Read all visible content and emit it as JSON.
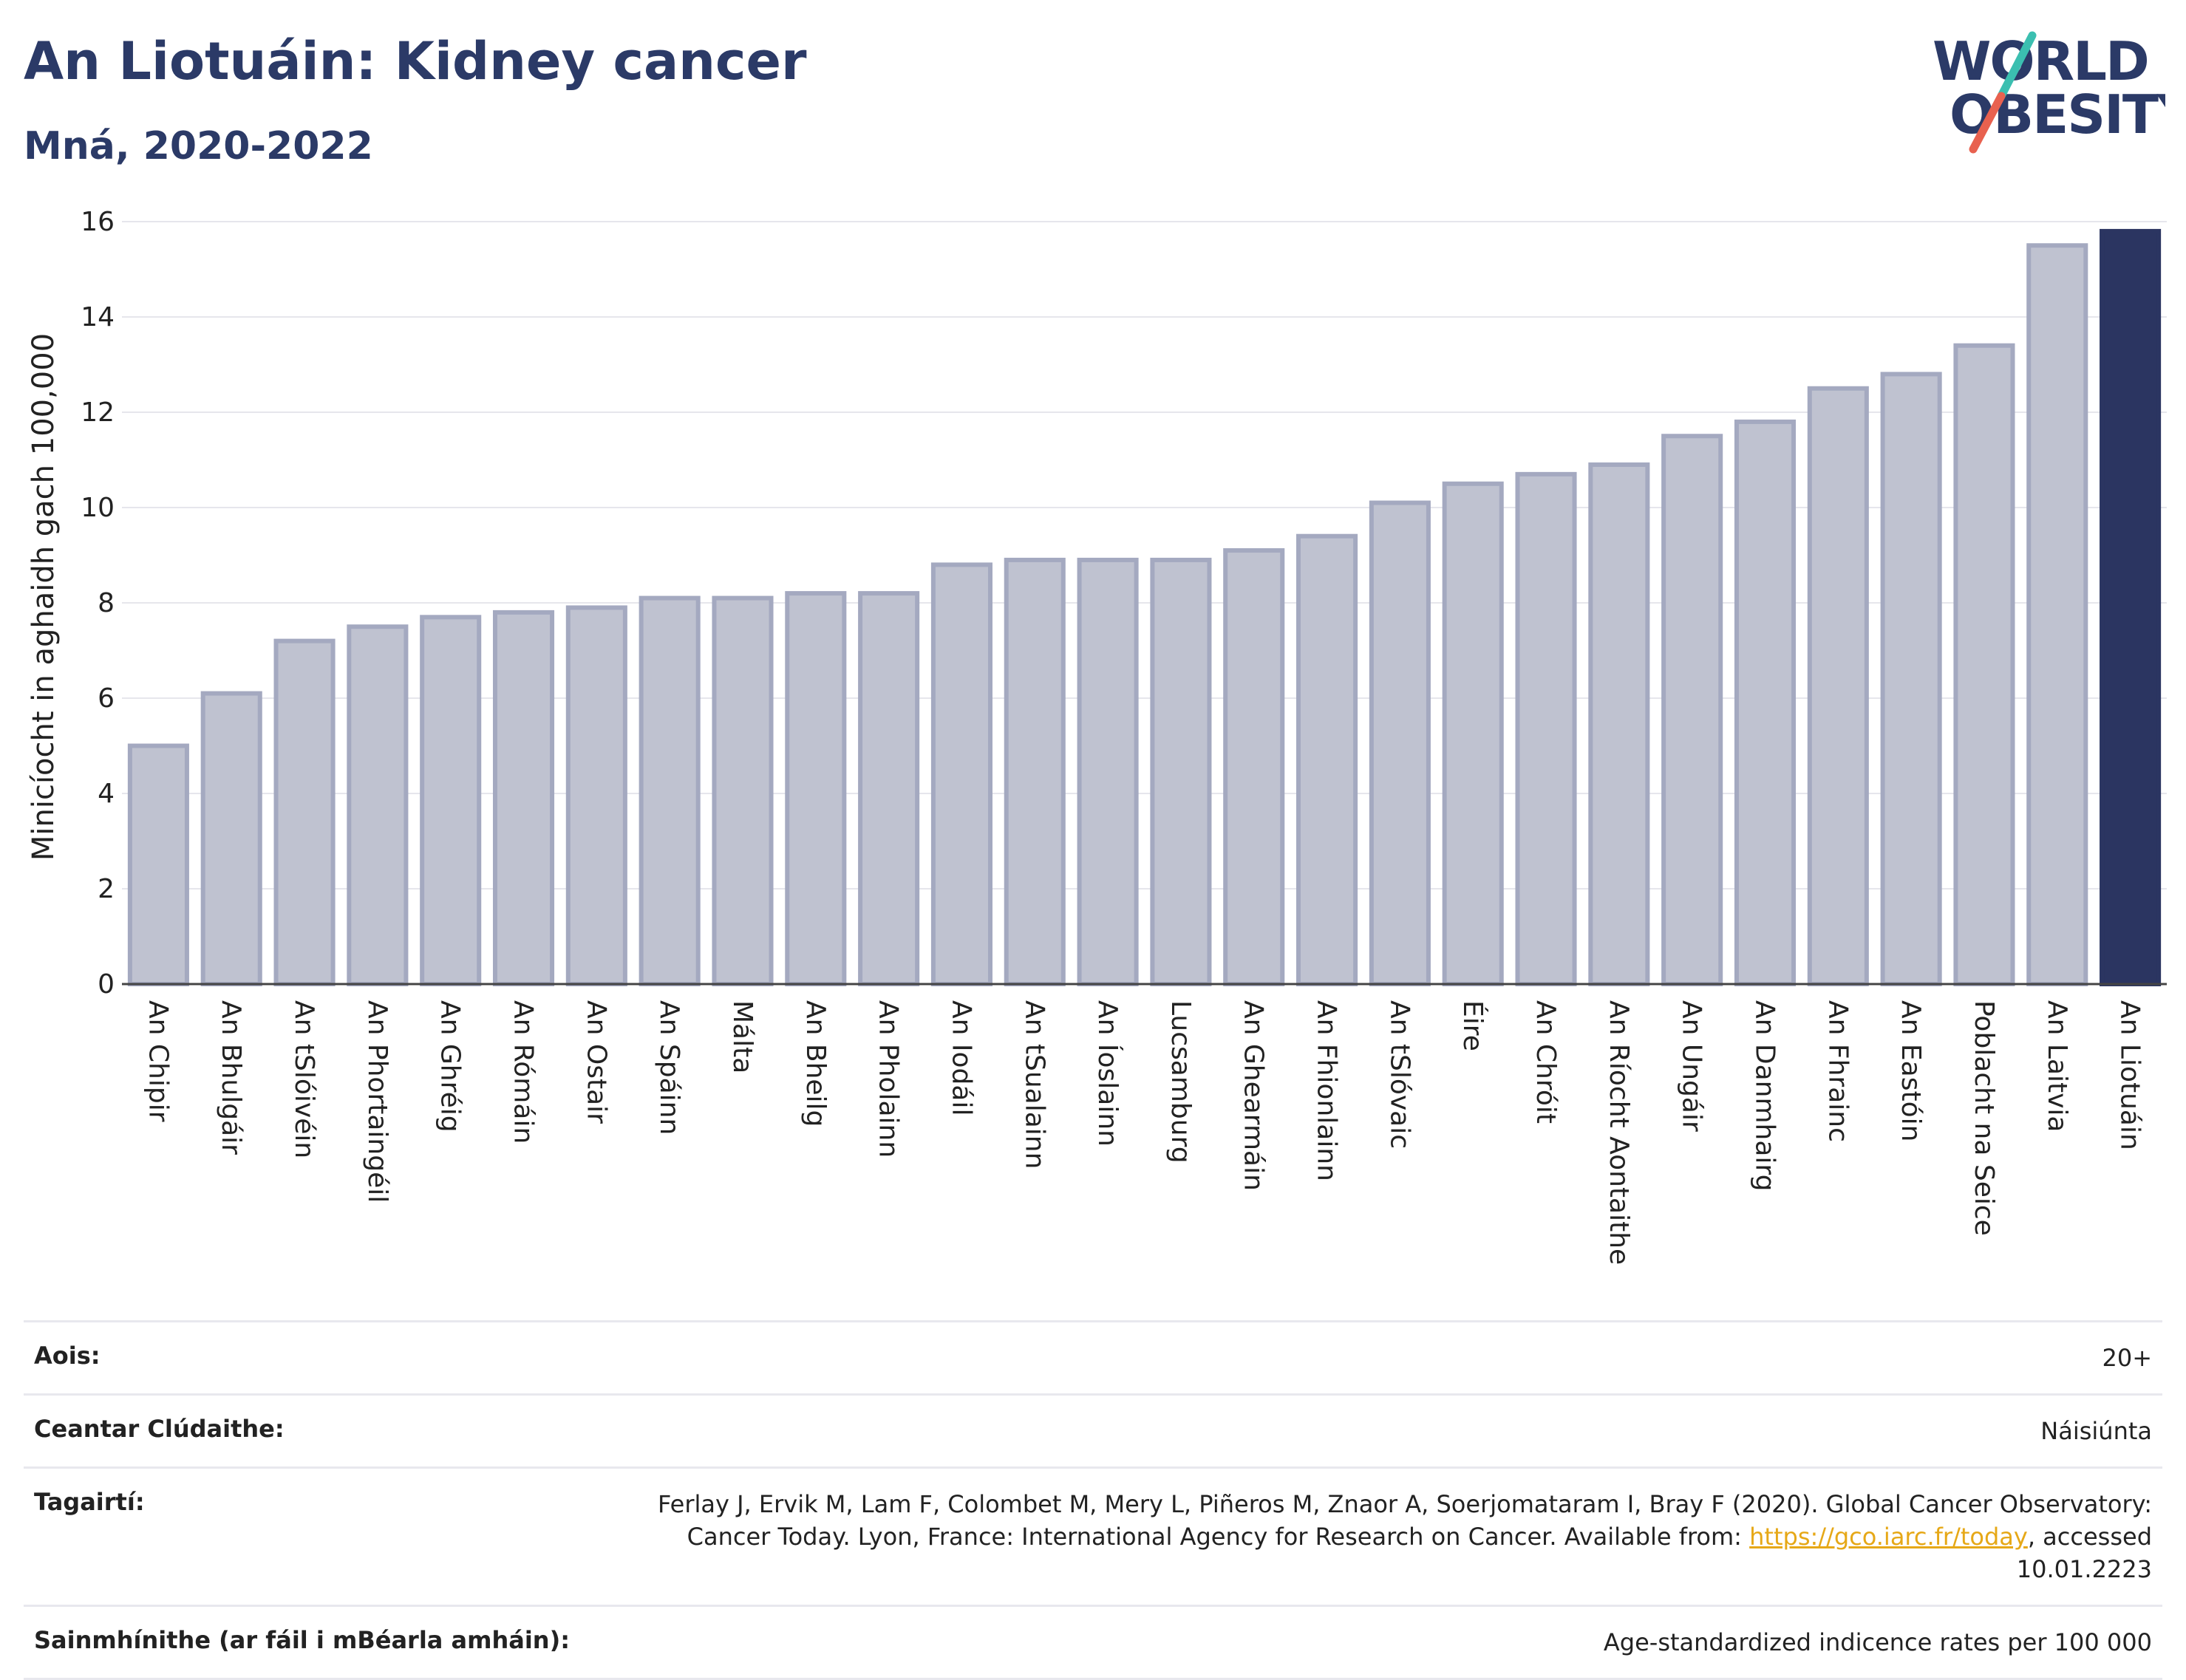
{
  "header": {
    "title": "An Liotuáin: Kidney cancer",
    "subtitle": "Mná, 2020-2022"
  },
  "logo": {
    "line1": "WORLD",
    "line2": "OBESITY",
    "colors": {
      "text": "#2b3a67",
      "slash_top": "#3bbfb0",
      "slash_bottom": "#e8614f"
    }
  },
  "chart_data": {
    "type": "bar",
    "ylabel": "Minicíocht in aghaidh gach 100,000",
    "ylim": [
      0,
      16
    ],
    "yticks": [
      0,
      2,
      4,
      6,
      8,
      10,
      12,
      14,
      16
    ],
    "grid": true,
    "categories": [
      "An Chipir",
      "An Bhulgáir",
      "An tSlóivéin",
      "An Phortaingéil",
      "An Ghréig",
      "An Rómáin",
      "An Ostair",
      "An Spáinn",
      "Málta",
      "An Bheilg",
      "An Pholainn",
      "An Iodáil",
      "An tSualainn",
      "An Íoslainn",
      "Lucsamburg",
      "An Ghearmáin",
      "An Fhionlainn",
      "An tSlóvaic",
      "Éire",
      "An Chróit",
      "An Ríocht Aontaithe",
      "An Ungáir",
      "An Danmhairg",
      "An Fhrainc",
      "An Eastóin",
      "Poblacht na Seice",
      "An Laitvia",
      "An Liotuáin"
    ],
    "values": [
      5.0,
      6.1,
      7.2,
      7.5,
      7.7,
      7.8,
      7.9,
      8.1,
      8.1,
      8.2,
      8.2,
      8.8,
      8.9,
      8.9,
      8.9,
      9.1,
      9.4,
      10.1,
      10.5,
      10.7,
      10.9,
      11.5,
      11.8,
      12.5,
      12.8,
      13.4,
      15.5,
      15.8
    ],
    "highlight": "An Liotuáin",
    "colors": {
      "bar": "#bfc2d0",
      "bar_edge": "#a4a9c0",
      "highlight": "#2b3561"
    }
  },
  "info": [
    {
      "label": "Aois:",
      "value": "20+"
    },
    {
      "label": "Ceantar Clúdaithe:",
      "value": "Náisiúnta"
    },
    {
      "label": "Tagairtí:",
      "value_pre": "Ferlay J, Ervik M, Lam F, Colombet M, Mery L, Piñeros M, Znaor A, Soerjomataram I, Bray F (2020). Global Cancer Observatory: Cancer Today. Lyon, France: International Agency for Research on Cancer. Available from: ",
      "link": "https://gco.iarc.fr/today",
      "value_post": ", accessed 10.01.2223"
    },
    {
      "label": "Sainmhínithe (ar fáil i mBéarla amháin):",
      "value": "Age-standardized indicence rates per 100 000"
    }
  ]
}
